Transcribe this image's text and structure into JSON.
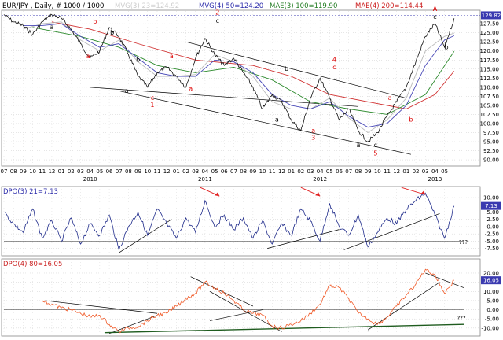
{
  "header": {
    "symbol": "EUR/JPY , Daily, # 1000 / 1000",
    "ma": [
      {
        "text": "MVG(3) 23=124.92",
        "color": "#cccccc"
      },
      {
        "text": "MVG(4) 50=124.20",
        "color": "#2a2aaa"
      },
      {
        "text": "MAE(3) 100=119.90",
        "color": "#1f7a1f"
      },
      {
        "text": "MAE(4) 200=114.44",
        "color": "#cc2222"
      }
    ]
  },
  "colors": {
    "price": "#111111",
    "mvg23": "#bbbbbb",
    "mvg50": "#4a4ab8",
    "mae100": "#2e8b2e",
    "mae200": "#d03030",
    "dpo21": "#1e2a8a",
    "dpo80": "#f05a28",
    "axis_bg": "#ffffff",
    "grid": "#c0c0c0",
    "wave_black": "#000000",
    "wave_red": "#dd0000",
    "current_bg": "#3a3ab0",
    "trend_green": "#1f5c1f"
  },
  "x_axis": {
    "months": [
      "07",
      "08",
      "09",
      "10",
      "11",
      "12",
      "01",
      "02",
      "03",
      "04",
      "05",
      "06",
      "07",
      "08",
      "09",
      "10",
      "11",
      "12",
      "01",
      "02",
      "03",
      "04",
      "05",
      "06",
      "07",
      "08",
      "09",
      "10",
      "11",
      "12",
      "01",
      "02",
      "03",
      "04",
      "05",
      "06",
      "07",
      "08",
      "09",
      "10",
      "11",
      "12",
      "01",
      "02",
      "03",
      "04",
      "05"
    ],
    "years": [
      "2010",
      "2011",
      "2012",
      "2013"
    ],
    "year_month_index": [
      9,
      21,
      33,
      45
    ]
  },
  "chart_data": [
    {
      "type": "line",
      "panel": "price",
      "ylim": [
        88.5,
        131
      ],
      "yticks": [
        "127.50",
        "125.00",
        "122.50",
        "120.00",
        "117.50",
        "115.00",
        "112.50",
        "110.00",
        "107.50",
        "105.00",
        "102.50",
        "100.00",
        "97.50",
        "95.00",
        "92.50",
        "90.00"
      ],
      "ytick_values": [
        127.5,
        125,
        122.5,
        120,
        117.5,
        115,
        112.5,
        110,
        107.5,
        105,
        102.5,
        100,
        97.5,
        95,
        92.5,
        90
      ],
      "current_value_label": "129.82",
      "current_value": 129.82,
      "series": [
        {
          "name": "EUR/JPY",
          "x": [
            0,
            1,
            2,
            3,
            4,
            5,
            6,
            7,
            8,
            9,
            10,
            11,
            12,
            13,
            14,
            15,
            16,
            17,
            18,
            19,
            20,
            21,
            22,
            23,
            24,
            25,
            26,
            27,
            28,
            29,
            30,
            31,
            32,
            33,
            34,
            35,
            36,
            37,
            38,
            39,
            40,
            41,
            42,
            43,
            44,
            45,
            46,
            47
          ],
          "values": [
            130,
            128,
            127,
            124.5,
            128,
            130,
            129,
            126,
            122,
            118,
            120,
            126.5,
            124,
            119,
            113,
            110,
            114,
            115.5,
            113,
            110,
            118,
            123.5,
            119,
            116,
            118,
            114,
            110,
            104,
            108,
            106,
            101,
            98,
            107,
            112.5,
            107,
            101,
            104,
            98,
            95,
            97.5,
            102,
            106,
            110,
            117,
            124,
            127.5,
            121,
            129
          ]
        },
        {
          "name": "MVG(3) 23",
          "x": [
            2,
            4,
            6,
            8,
            10,
            12,
            14,
            16,
            18,
            20,
            22,
            24,
            26,
            28,
            30,
            32,
            34,
            36,
            38,
            40,
            42,
            44,
            46,
            47
          ],
          "values": [
            126,
            127.5,
            128,
            123,
            120,
            123,
            117,
            113,
            113,
            113.5,
            119,
            117,
            113,
            106,
            104,
            104,
            107,
            101.5,
            97.5,
            101,
            107,
            120,
            124,
            124.9
          ]
        },
        {
          "name": "MVG(4) 50",
          "x": [
            2,
            4,
            6,
            8,
            10,
            12,
            14,
            16,
            18,
            20,
            22,
            24,
            26,
            28,
            30,
            32,
            34,
            36,
            38,
            40,
            42,
            44,
            46,
            47
          ],
          "values": [
            127,
            127,
            127.5,
            124,
            121,
            122,
            118,
            114,
            113,
            113,
            117.5,
            117,
            114,
            108,
            105,
            104,
            106,
            102,
            99,
            100,
            105,
            116,
            123,
            124.2
          ]
        },
        {
          "name": "MAE(3) 100",
          "x": [
            3,
            8,
            12,
            16,
            20,
            24,
            28,
            32,
            36,
            40,
            44,
            47
          ],
          "values": [
            126.5,
            124,
            121,
            116,
            114,
            115.5,
            112,
            106,
            104,
            102.5,
            108,
            119.9
          ]
        },
        {
          "name": "MAE(4) 200",
          "x": [
            5,
            9,
            14,
            20,
            26,
            30,
            34,
            38,
            42,
            45,
            47
          ],
          "values": [
            128,
            126,
            122,
            117.5,
            116,
            113,
            108,
            106,
            104,
            108,
            114.44
          ]
        }
      ],
      "trendlines": [
        {
          "x": [
            9,
            37
          ],
          "values": [
            110,
            104.7
          ]
        },
        {
          "x": [
            19,
            42
          ],
          "values": [
            122.5,
            107
          ]
        },
        {
          "x": [
            12,
            42.5
          ],
          "values": [
            109,
            91.5
          ]
        }
      ],
      "wave_labels": [
        {
          "text": "a",
          "x": 5,
          "y": 126,
          "color": "black"
        },
        {
          "text": "b",
          "x": 9.5,
          "y": 127.5,
          "color": "red"
        },
        {
          "text": "a",
          "x": 8.8,
          "y": 118,
          "color": "red"
        },
        {
          "text": "b",
          "x": 11.3,
          "y": 124.5,
          "color": "black"
        },
        {
          "text": "b",
          "x": 14,
          "y": 117,
          "color": "black"
        },
        {
          "text": "a",
          "x": 17.5,
          "y": 118,
          "color": "red"
        },
        {
          "text": "a",
          "x": 19.5,
          "y": 109,
          "color": "red"
        },
        {
          "text": "a",
          "x": 12.8,
          "y": 108.5,
          "color": "black"
        },
        {
          "text": "c",
          "x": 15.5,
          "y": 106.5,
          "color": "red"
        },
        {
          "text": "1",
          "x": 15.5,
          "y": 104.5,
          "color": "red"
        },
        {
          "text": "2",
          "x": 22.3,
          "y": 130,
          "color": "red"
        },
        {
          "text": "c",
          "x": 22.3,
          "y": 127.7,
          "color": "black"
        },
        {
          "text": "b",
          "x": 29.5,
          "y": 114.5,
          "color": "black"
        },
        {
          "text": "a",
          "x": 28.5,
          "y": 100.5,
          "color": "black"
        },
        {
          "text": "4",
          "x": 34.5,
          "y": 117,
          "color": "red"
        },
        {
          "text": "c",
          "x": 34.5,
          "y": 115,
          "color": "red"
        },
        {
          "text": "a",
          "x": 32.3,
          "y": 97.5,
          "color": "red"
        },
        {
          "text": "3",
          "x": 32.3,
          "y": 95.5,
          "color": "red"
        },
        {
          "text": "a",
          "x": 40.3,
          "y": 106.5,
          "color": "red"
        },
        {
          "text": "b",
          "x": 42.5,
          "y": 100.5,
          "color": "red"
        },
        {
          "text": "a",
          "x": 37,
          "y": 93.5,
          "color": "black"
        },
        {
          "text": "c",
          "x": 38.8,
          "y": 93.5,
          "color": "black"
        },
        {
          "text": "5",
          "x": 38.8,
          "y": 91.2,
          "color": "red"
        },
        {
          "text": "A",
          "x": 45,
          "y": 131,
          "color": "red"
        },
        {
          "text": "c",
          "x": 45,
          "y": 128.8,
          "color": "black"
        },
        {
          "text": "b",
          "x": 46.2,
          "y": 120.5,
          "color": "black"
        }
      ]
    },
    {
      "type": "line",
      "panel": "dpo21",
      "title": "DPO(3) 21=7.13",
      "ylim": [
        -9.5,
        13
      ],
      "yticks": [
        "10.00",
        "7.50",
        "5.00",
        "2.50",
        "0.00",
        "-2.50",
        "-5.00",
        "-7.50"
      ],
      "ytick_values": [
        10,
        7.5,
        5,
        2.5,
        0,
        -2.5,
        -5,
        -7.5
      ],
      "current_value_label": "7.13",
      "current_value": 7.13,
      "annotation": "???",
      "annotation_x": 47.5,
      "annotation_y": -6,
      "series": [
        {
          "name": "DPO(3) 21",
          "x": [
            0,
            1,
            2,
            3,
            4,
            5,
            6,
            7,
            8,
            9,
            10,
            11,
            12,
            13,
            14,
            15,
            16,
            17,
            18,
            19,
            20,
            21,
            22,
            23,
            24,
            25,
            26,
            27,
            28,
            29,
            30,
            31,
            32,
            33,
            34,
            35,
            36,
            37,
            38,
            39,
            40,
            41,
            42,
            43,
            44,
            45,
            46,
            47
          ],
          "values": [
            5,
            1,
            -2,
            6,
            -4,
            2,
            -5,
            3,
            -6,
            1,
            -3,
            4,
            -8,
            0,
            5,
            -3,
            6,
            1,
            -4,
            3,
            -2,
            9,
            0,
            4,
            -1,
            3,
            -4,
            2,
            -6,
            1,
            -3,
            6,
            2,
            -5,
            8,
            0,
            -3,
            4,
            -7,
            -2,
            3,
            1,
            6,
            9,
            11.5,
            4,
            -4,
            7.13
          ]
        }
      ],
      "trendlines": [
        {
          "x": [
            12,
            17.5
          ],
          "values": [
            -9,
            2.5
          ]
        },
        {
          "x": [
            27.5,
            35
          ],
          "values": [
            -7.5,
            -1
          ]
        },
        {
          "x": [
            35.5,
            45.5
          ],
          "values": [
            -8,
            4.5
          ]
        }
      ],
      "hlines": [
        {
          "values": 5,
          "x": [
            10,
            47
          ]
        },
        {
          "values": 7.5,
          "x": [
            0,
            48
          ]
        },
        {
          "values": -5,
          "x": [
            0,
            48
          ]
        }
      ],
      "arrows": [
        {
          "x": [
            20.5,
            22.5
          ],
          "values": [
            13.5,
            10.5
          ]
        },
        {
          "x": [
            31,
            33
          ],
          "values": [
            13.5,
            10.5
          ]
        },
        {
          "x": [
            41.5,
            44
          ],
          "values": [
            13.5,
            11
          ]
        }
      ]
    },
    {
      "type": "line",
      "panel": "dpo80",
      "title": "DPO(4) 80=16.05",
      "ylim": [
        -13.5,
        26
      ],
      "yticks": [
        "20.00",
        "15.00",
        "10.00",
        "5.00",
        "0.00",
        "-5.00",
        "-10.00"
      ],
      "ytick_values": [
        20,
        15,
        10,
        5,
        0,
        -5,
        -10
      ],
      "current_value_label": "16.05",
      "current_value": 16.05,
      "annotation": "???",
      "annotation_x": 47.3,
      "annotation_y": -5.5,
      "series": [
        {
          "name": "DPO(4) 80",
          "x": [
            4,
            5,
            6,
            7,
            8,
            9,
            10,
            11,
            12,
            13,
            14,
            15,
            16,
            17,
            18,
            19,
            20,
            21,
            22,
            23,
            24,
            25,
            26,
            27,
            28,
            29,
            30,
            31,
            32,
            33,
            34,
            35,
            36,
            37,
            38,
            39,
            40,
            41,
            42,
            43,
            44,
            45,
            46,
            47
          ],
          "values": [
            5,
            3,
            1,
            0,
            -2,
            -4,
            -3,
            -8,
            -12,
            -10,
            -9,
            -6,
            -3,
            -2,
            2,
            6,
            9,
            15,
            12,
            9,
            5,
            0,
            -2,
            -3,
            -9,
            -10,
            -8,
            -6,
            -2,
            3,
            13,
            12,
            6,
            -2,
            -5,
            -8,
            -4,
            2,
            8,
            14,
            22,
            19,
            9,
            16.05
          ]
        }
      ],
      "trendlines": [
        {
          "x": [
            4.3,
            16
          ],
          "values": [
            5,
            -2
          ]
        },
        {
          "x": [
            11,
            16
          ],
          "values": [
            -13,
            -3
          ]
        },
        {
          "x": [
            19.5,
            26
          ],
          "values": [
            18,
            2
          ]
        },
        {
          "x": [
            21.5,
            29
          ],
          "values": [
            10,
            -12
          ]
        },
        {
          "x": [
            21.5,
            27
          ],
          "values": [
            -6,
            0
          ]
        },
        {
          "x": [
            38,
            45.5
          ],
          "values": [
            -11,
            15
          ]
        },
        {
          "x": [
            44,
            48
          ],
          "values": [
            20,
            12
          ]
        }
      ],
      "hlines": [
        {
          "values": 0,
          "x": [
            0,
            48
          ]
        }
      ],
      "support_line": {
        "x": [
          10.5,
          48
        ],
        "values": [
          -12.5,
          -8
        ]
      }
    }
  ]
}
